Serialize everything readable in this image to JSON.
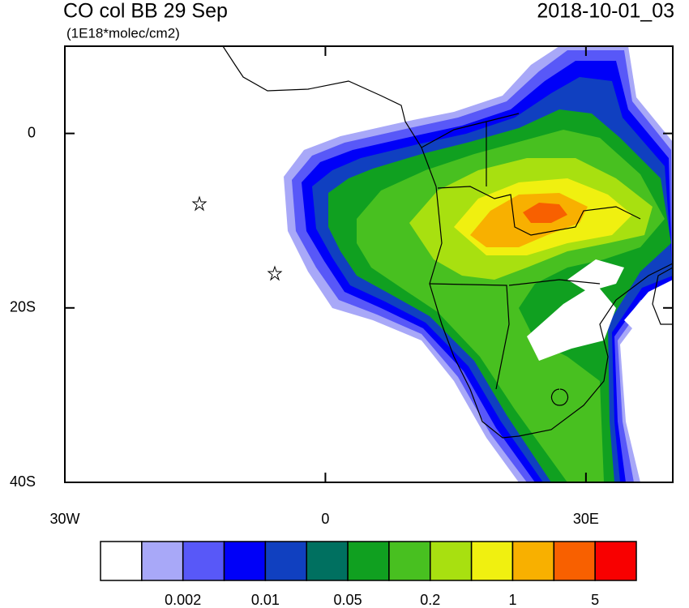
{
  "map": {
    "title": "CO col BB 29 Sep",
    "subtitle": "(1E18*molec/cm2)",
    "timestamp": "2018-10-01_03",
    "xlim": [
      -30,
      40
    ],
    "ylim": [
      -40,
      10
    ],
    "lat_ticks": [
      0,
      {
        "value": -20,
        "label": "20S"
      },
      {
        "value": -40,
        "label": "40S"
      }
    ],
    "lon_ticks": [
      {
        "value": -30,
        "label": "30W"
      },
      0,
      {
        "value": 30,
        "label": "30E"
      }
    ],
    "colorbar": {
      "colors": [
        "#ffffff",
        "#a8a8f8",
        "#5858f8",
        "#0000f8",
        "#1040c0",
        "#007060",
        "#10a020",
        "#48c020",
        "#a8e010",
        "#f0f010",
        "#f8b000",
        "#f86000",
        "#f80000"
      ],
      "labels": [
        0.002,
        0.01,
        0.05,
        0.2,
        1,
        5
      ]
    }
  }
}
